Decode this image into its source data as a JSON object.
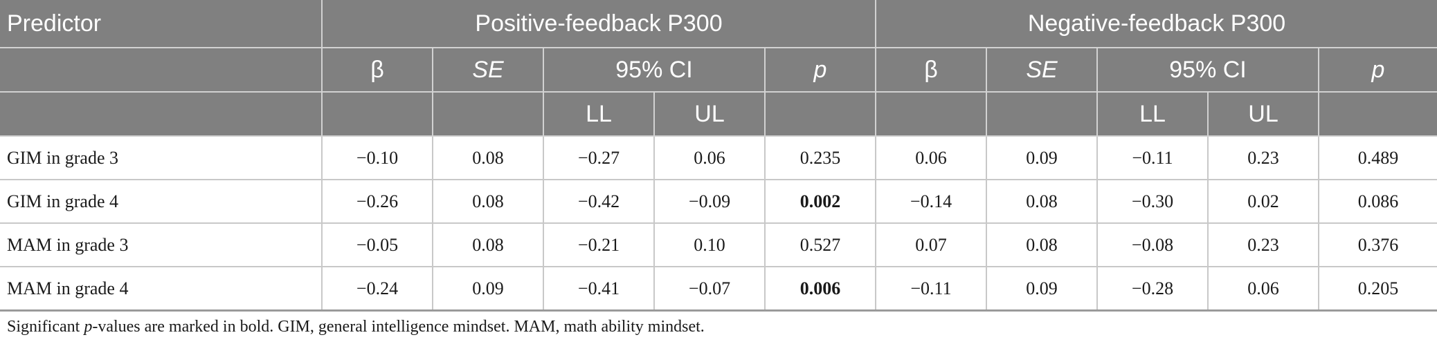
{
  "table": {
    "header": {
      "predictor": "Predictor",
      "group_positive": "Positive-feedback P300",
      "group_negative": "Negative-feedback P300",
      "beta": "β",
      "se": "SE",
      "ci": "95% CI",
      "p": "p",
      "ll": "LL",
      "ul": "UL"
    },
    "rows": [
      {
        "label": "GIM in grade 3",
        "pos": {
          "beta": "−0.10",
          "se": "0.08",
          "ll": "−0.27",
          "ul": "0.06",
          "p": "0.235"
        },
        "neg": {
          "beta": "0.06",
          "se": "0.09",
          "ll": "−0.11",
          "ul": "0.23",
          "p": "0.489"
        }
      },
      {
        "label": "GIM in grade 4",
        "pos": {
          "beta": "−0.26",
          "se": "0.08",
          "ll": "−0.42",
          "ul": "−0.09",
          "p": "0.002"
        },
        "neg": {
          "beta": "−0.14",
          "se": "0.08",
          "ll": "−0.30",
          "ul": "0.02",
          "p": "0.086"
        }
      },
      {
        "label": "MAM in grade 3",
        "pos": {
          "beta": "−0.05",
          "se": "0.08",
          "ll": "−0.21",
          "ul": "0.10",
          "p": "0.527"
        },
        "neg": {
          "beta": "0.07",
          "se": "0.08",
          "ll": "−0.08",
          "ul": "0.23",
          "p": "0.376"
        }
      },
      {
        "label": "MAM in grade 4",
        "pos": {
          "beta": "−0.24",
          "se": "0.09",
          "ll": "−0.41",
          "ul": "−0.07",
          "p": "0.006"
        },
        "neg": {
          "beta": "−0.11",
          "se": "0.09",
          "ll": "−0.28",
          "ul": "0.06",
          "p": "0.205"
        }
      }
    ]
  },
  "footnote": {
    "pre": "Significant ",
    "p_letter": "p",
    "post": "-values are marked in bold. GIM, general intelligence mindset. MAM, math ability mindset."
  }
}
